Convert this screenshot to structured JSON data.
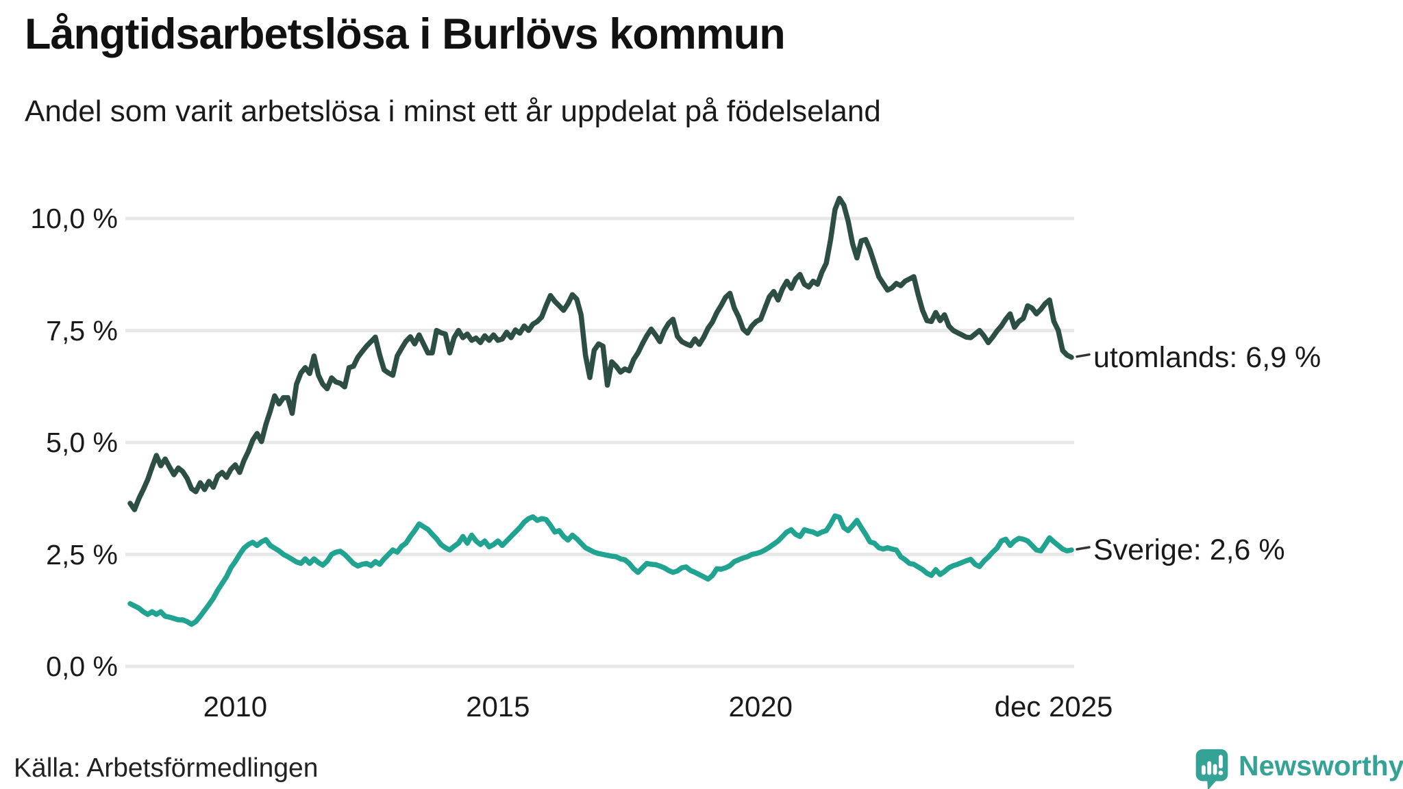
{
  "header": {
    "title": "Långtidsarbetslösa i Burlövs kommun",
    "subtitle": "Andel som varit arbetslösa i minst ett år uppdelat på födelseland"
  },
  "footer": {
    "source": "Källa: Arbetsförmedlingen",
    "brand": "Newsworthy"
  },
  "colors": {
    "utomlands_line": "#2c4e45",
    "sverige_line": "#21a391",
    "grid": "#e8e8e8",
    "leader_dash": "#333333",
    "brand_teal": "#35a296",
    "text": "#1a1a1a"
  },
  "chart_data": {
    "type": "line",
    "title": "Långtidsarbetslösa i Burlövs kommun",
    "subtitle": "Andel som varit arbetslösa i minst ett år uppdelat på födelseland",
    "x_unit": "month",
    "x_range_start": 2008.0,
    "x_range_end": 2025.9167,
    "ylim": [
      0,
      10.7
    ],
    "grid": true,
    "legend_position": "right-annotations",
    "y_ticks": [
      {
        "value": 0,
        "label": "0,0 %"
      },
      {
        "value": 2.5,
        "label": "2,5 %"
      },
      {
        "value": 5,
        "label": "5,0 %"
      },
      {
        "value": 7.5,
        "label": "7,5 %"
      },
      {
        "value": 10,
        "label": "10,0 %"
      }
    ],
    "x_ticks": [
      {
        "t": 2010,
        "label": "2010"
      },
      {
        "t": 2015,
        "label": "2015"
      },
      {
        "t": 2020,
        "label": "2020"
      },
      {
        "t": 2025.9167,
        "label": "dec 2025"
      }
    ],
    "series": [
      {
        "name": "utomlands",
        "annotation": "utomlands: 6,9 %",
        "end_value": "6,9 %",
        "color": "#2c4e45",
        "values": [
          3.64,
          3.5,
          3.75,
          3.95,
          4.17,
          4.45,
          4.71,
          4.48,
          4.63,
          4.45,
          4.28,
          4.43,
          4.35,
          4.2,
          3.97,
          3.9,
          4.1,
          3.95,
          4.13,
          4.0,
          4.25,
          4.33,
          4.22,
          4.4,
          4.5,
          4.33,
          4.6,
          4.8,
          5.05,
          5.2,
          5.02,
          5.4,
          5.7,
          6.04,
          5.86,
          6.0,
          6.0,
          5.65,
          6.3,
          6.55,
          6.67,
          6.54,
          6.93,
          6.5,
          6.3,
          6.2,
          6.44,
          6.35,
          6.32,
          6.24,
          6.67,
          6.7,
          6.9,
          7.03,
          7.15,
          7.25,
          7.35,
          6.95,
          6.62,
          6.55,
          6.5,
          6.93,
          7.1,
          7.26,
          7.36,
          7.2,
          7.4,
          7.2,
          7.0,
          7.0,
          7.5,
          7.45,
          7.42,
          7.0,
          7.34,
          7.5,
          7.34,
          7.42,
          7.28,
          7.33,
          7.23,
          7.38,
          7.28,
          7.4,
          7.28,
          7.31,
          7.46,
          7.34,
          7.51,
          7.44,
          7.6,
          7.5,
          7.64,
          7.7,
          7.8,
          8.05,
          8.28,
          8.15,
          8.05,
          7.95,
          8.1,
          8.3,
          8.2,
          7.85,
          6.95,
          6.45,
          7.06,
          7.2,
          7.15,
          6.28,
          6.8,
          6.7,
          6.57,
          6.64,
          6.6,
          6.85,
          7.0,
          7.2,
          7.38,
          7.53,
          7.4,
          7.25,
          7.5,
          7.66,
          7.75,
          7.37,
          7.25,
          7.2,
          7.16,
          7.31,
          7.19,
          7.35,
          7.55,
          7.69,
          7.9,
          8.06,
          8.24,
          8.33,
          8.0,
          7.8,
          7.53,
          7.44,
          7.6,
          7.7,
          7.75,
          8.0,
          8.25,
          8.37,
          8.18,
          8.43,
          8.6,
          8.44,
          8.65,
          8.75,
          8.53,
          8.47,
          8.6,
          8.53,
          8.8,
          9.0,
          9.53,
          10.2,
          10.45,
          10.3,
          9.94,
          9.44,
          9.12,
          9.5,
          9.53,
          9.3,
          9.0,
          8.7,
          8.55,
          8.4,
          8.45,
          8.55,
          8.5,
          8.6,
          8.65,
          8.7,
          8.3,
          7.95,
          7.72,
          7.7,
          7.9,
          7.72,
          7.85,
          7.6,
          7.5,
          7.45,
          7.4,
          7.35,
          7.34,
          7.42,
          7.5,
          7.38,
          7.23,
          7.35,
          7.49,
          7.6,
          7.75,
          7.87,
          7.57,
          7.7,
          7.77,
          8.05,
          8.0,
          7.87,
          7.97,
          8.1,
          8.18,
          7.7,
          7.5,
          7.05,
          6.95,
          6.9
        ]
      },
      {
        "name": "Sverige",
        "annotation": "Sverige: 2,6 %",
        "end_value": "2,6 %",
        "color": "#21a391",
        "values": [
          1.4,
          1.35,
          1.3,
          1.22,
          1.16,
          1.22,
          1.16,
          1.22,
          1.12,
          1.1,
          1.07,
          1.04,
          1.04,
          1.0,
          0.94,
          1.0,
          1.12,
          1.25,
          1.38,
          1.52,
          1.7,
          1.85,
          2.0,
          2.2,
          2.34,
          2.5,
          2.64,
          2.72,
          2.77,
          2.7,
          2.78,
          2.83,
          2.7,
          2.64,
          2.58,
          2.5,
          2.45,
          2.39,
          2.33,
          2.3,
          2.4,
          2.3,
          2.4,
          2.32,
          2.26,
          2.35,
          2.5,
          2.55,
          2.57,
          2.5,
          2.4,
          2.3,
          2.24,
          2.28,
          2.3,
          2.25,
          2.34,
          2.28,
          2.4,
          2.5,
          2.6,
          2.55,
          2.68,
          2.75,
          2.9,
          3.03,
          3.18,
          3.12,
          3.06,
          2.95,
          2.85,
          2.72,
          2.65,
          2.6,
          2.68,
          2.75,
          2.9,
          2.75,
          2.93,
          2.8,
          2.72,
          2.8,
          2.67,
          2.72,
          2.8,
          2.7,
          2.8,
          2.9,
          3.0,
          3.1,
          3.22,
          3.3,
          3.34,
          3.26,
          3.3,
          3.28,
          3.15,
          3.0,
          3.03,
          2.9,
          2.82,
          2.93,
          2.85,
          2.75,
          2.65,
          2.6,
          2.55,
          2.52,
          2.5,
          2.48,
          2.46,
          2.45,
          2.4,
          2.38,
          2.3,
          2.18,
          2.1,
          2.2,
          2.3,
          2.28,
          2.27,
          2.24,
          2.2,
          2.14,
          2.1,
          2.13,
          2.2,
          2.22,
          2.14,
          2.1,
          2.05,
          2.0,
          1.95,
          2.03,
          2.18,
          2.17,
          2.2,
          2.25,
          2.34,
          2.38,
          2.42,
          2.45,
          2.5,
          2.52,
          2.55,
          2.6,
          2.66,
          2.73,
          2.8,
          2.9,
          3.0,
          3.05,
          2.95,
          2.9,
          3.05,
          3.02,
          3.0,
          2.95,
          3.0,
          3.03,
          3.18,
          3.36,
          3.33,
          3.1,
          3.03,
          3.14,
          3.26,
          3.1,
          2.95,
          2.78,
          2.75,
          2.65,
          2.62,
          2.65,
          2.62,
          2.6,
          2.45,
          2.38,
          2.3,
          2.28,
          2.22,
          2.16,
          2.08,
          2.03,
          2.16,
          2.05,
          2.12,
          2.2,
          2.25,
          2.28,
          2.32,
          2.36,
          2.39,
          2.28,
          2.23,
          2.35,
          2.44,
          2.55,
          2.64,
          2.8,
          2.84,
          2.7,
          2.8,
          2.86,
          2.84,
          2.8,
          2.7,
          2.6,
          2.58,
          2.72,
          2.87,
          2.78,
          2.7,
          2.62,
          2.58,
          2.6
        ]
      }
    ]
  }
}
